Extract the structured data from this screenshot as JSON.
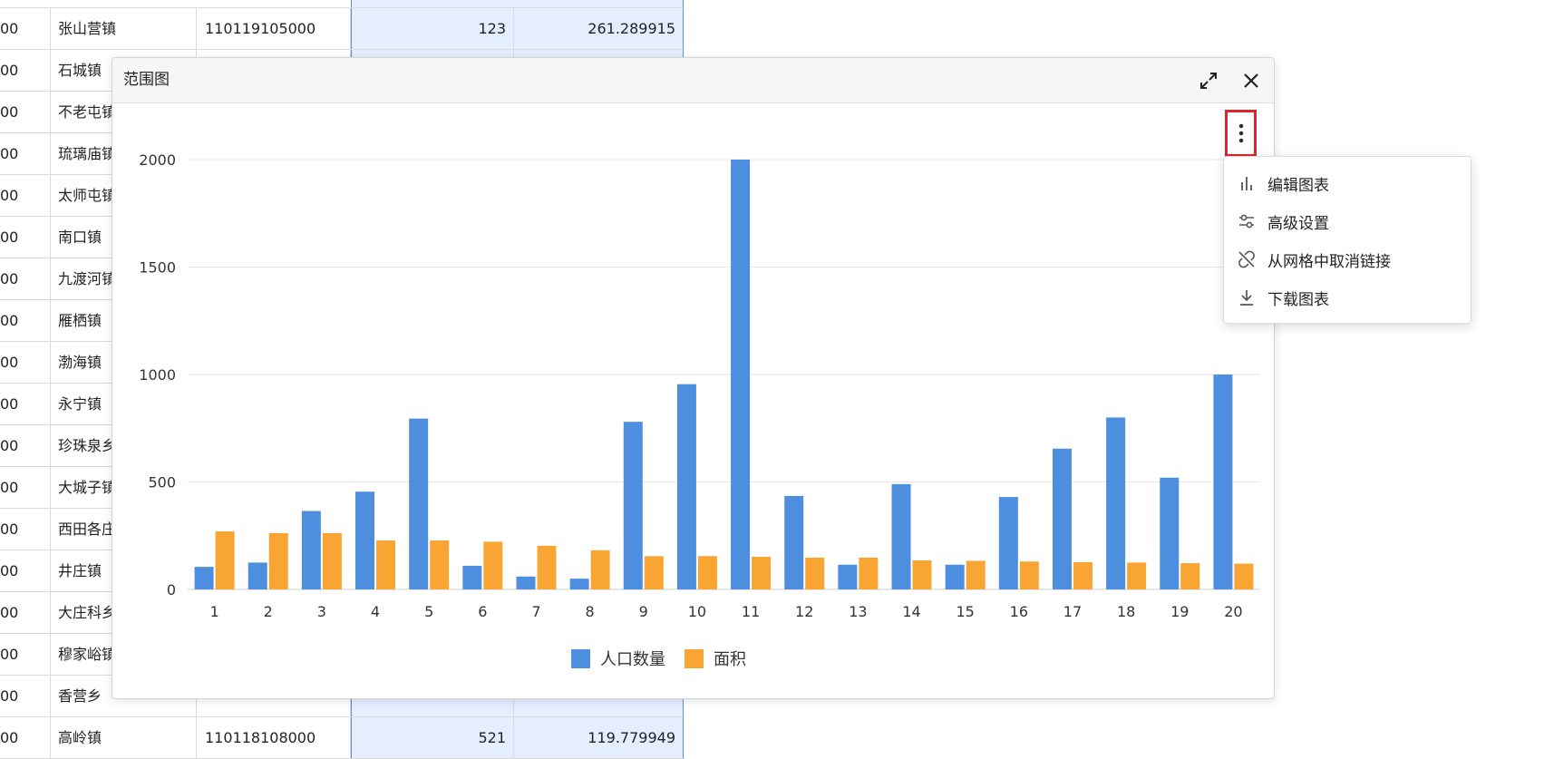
{
  "grid": {
    "rows": [
      {
        "c0": "00",
        "name": "张山营镇",
        "code": "110119105000",
        "pop": "123",
        "area": "261.289915"
      },
      {
        "c0": "00",
        "name": "石城镇",
        "code": "",
        "pop": "",
        "area": ""
      },
      {
        "c0": "00",
        "name": "不老屯镇",
        "code": "",
        "pop": "",
        "area": ""
      },
      {
        "c0": "00",
        "name": "琉璃庙镇",
        "code": "",
        "pop": "",
        "area": ""
      },
      {
        "c0": "00",
        "name": "太师屯镇",
        "code": "",
        "pop": "",
        "area": ""
      },
      {
        "c0": "00",
        "name": "南口镇",
        "code": "",
        "pop": "",
        "area": ""
      },
      {
        "c0": "00",
        "name": "九渡河镇",
        "code": "",
        "pop": "",
        "area": ""
      },
      {
        "c0": "00",
        "name": "雁栖镇",
        "code": "",
        "pop": "",
        "area": ""
      },
      {
        "c0": "00",
        "name": "渤海镇",
        "code": "",
        "pop": "",
        "area": ""
      },
      {
        "c0": "00",
        "name": "永宁镇",
        "code": "",
        "pop": "",
        "area": ""
      },
      {
        "c0": "00",
        "name": "珍珠泉乡",
        "code": "",
        "pop": "",
        "area": ""
      },
      {
        "c0": "00",
        "name": "大城子镇",
        "code": "",
        "pop": "",
        "area": ""
      },
      {
        "c0": "00",
        "name": "西田各庄镇",
        "code": "",
        "pop": "",
        "area": ""
      },
      {
        "c0": "00",
        "name": "井庄镇",
        "code": "",
        "pop": "",
        "area": ""
      },
      {
        "c0": "00",
        "name": "大庄科乡",
        "code": "",
        "pop": "",
        "area": ""
      },
      {
        "c0": "00",
        "name": "穆家峪镇",
        "code": "",
        "pop": "",
        "area": ""
      },
      {
        "c0": "00",
        "name": "香营乡",
        "code": "",
        "pop": "",
        "area": ""
      },
      {
        "c0": "00",
        "name": "高岭镇",
        "code": "110118108000",
        "pop": "521",
        "area": "119.779949"
      }
    ]
  },
  "dialog": {
    "title": "范围图",
    "maximize_icon": "maximize-icon",
    "close_icon": "close-icon"
  },
  "menu": {
    "items": [
      {
        "label": "编辑图表",
        "icon": "bar-chart-icon"
      },
      {
        "label": "高级设置",
        "icon": "sliders-icon"
      },
      {
        "label": "从网格中取消链接",
        "icon": "unlink-icon"
      },
      {
        "label": "下载图表",
        "icon": "download-icon"
      }
    ]
  },
  "chart_data": {
    "type": "bar",
    "categories": [
      "1",
      "2",
      "3",
      "4",
      "5",
      "6",
      "7",
      "8",
      "9",
      "10",
      "11",
      "12",
      "13",
      "14",
      "15",
      "16",
      "17",
      "18",
      "19",
      "20"
    ],
    "series": [
      {
        "name": "人口数量",
        "color": "#4e8ede",
        "values": [
          105,
          125,
          365,
          455,
          795,
          110,
          60,
          50,
          780,
          955,
          2000,
          435,
          115,
          490,
          115,
          430,
          655,
          800,
          520,
          1000
        ]
      },
      {
        "name": "面积",
        "color": "#f9a533",
        "values": [
          270,
          262,
          262,
          228,
          228,
          222,
          203,
          182,
          155,
          155,
          152,
          148,
          148,
          135,
          133,
          130,
          127,
          125,
          122,
          120
        ]
      }
    ],
    "ylim": [
      0,
      2000
    ],
    "yticks": [
      "0",
      "500",
      "1000",
      "1500",
      "2000"
    ],
    "grid": true,
    "legend": "bottom"
  }
}
